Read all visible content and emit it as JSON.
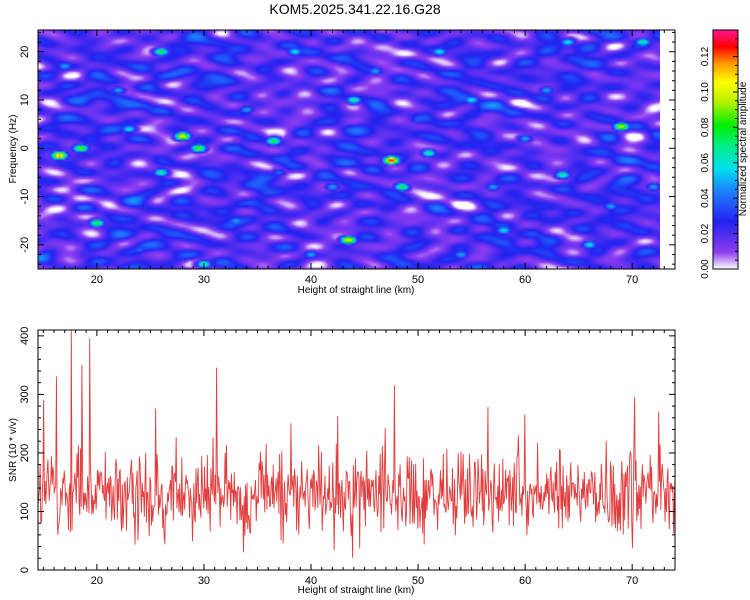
{
  "title": "KOM5.2025.341.22.16.G28",
  "chart_data": [
    {
      "type": "heatmap",
      "xlabel": "Height of straight line (km)",
      "ylabel": "Frequency (Hz)",
      "xlim": [
        14.5,
        74
      ],
      "ylim": [
        -25,
        24.5
      ],
      "data_xrange": [
        14.5,
        73
      ],
      "xticks": [
        20,
        30,
        40,
        50,
        60,
        70
      ],
      "yticks": [
        -20,
        -10,
        0,
        10,
        20
      ],
      "colorbar": {
        "label": "Normalized spectral amplitude",
        "range": [
          0,
          0.135
        ],
        "ticks": [
          "0.00",
          "0.02",
          "0.04",
          "0.06",
          "0.08",
          "0.10",
          "0.12"
        ],
        "tick_values": [
          0,
          0.02,
          0.04,
          0.06,
          0.08,
          0.1,
          0.12
        ]
      },
      "background_amplitude": 0.02,
      "peaks": [
        {
          "x": 47.5,
          "y": -2.5,
          "amplitude": 0.13
        },
        {
          "x": 16.5,
          "y": -1.5,
          "amplitude": 0.12
        },
        {
          "x": 28,
          "y": 2.5,
          "amplitude": 0.11
        },
        {
          "x": 43.5,
          "y": -19,
          "amplitude": 0.11
        },
        {
          "x": 69,
          "y": 4.5,
          "amplitude": 0.1
        },
        {
          "x": 18.5,
          "y": 0,
          "amplitude": 0.09
        },
        {
          "x": 29.5,
          "y": 0,
          "amplitude": 0.09
        },
        {
          "x": 36.5,
          "y": 1.5,
          "amplitude": 0.08
        },
        {
          "x": 26,
          "y": 20,
          "amplitude": 0.08
        },
        {
          "x": 48.5,
          "y": -8,
          "amplitude": 0.08
        },
        {
          "x": 20,
          "y": -15.5,
          "amplitude": 0.08
        },
        {
          "x": 44,
          "y": 10,
          "amplitude": 0.07
        },
        {
          "x": 51,
          "y": -1,
          "amplitude": 0.07
        },
        {
          "x": 63.5,
          "y": -5.5,
          "amplitude": 0.07
        },
        {
          "x": 71,
          "y": 22,
          "amplitude": 0.07
        },
        {
          "x": 30,
          "y": -24,
          "amplitude": 0.07
        },
        {
          "x": 26,
          "y": -5,
          "amplitude": 0.07
        },
        {
          "x": 23,
          "y": 4,
          "amplitude": 0.06
        },
        {
          "x": 55,
          "y": 10,
          "amplitude": 0.06
        },
        {
          "x": 64,
          "y": 22,
          "amplitude": 0.06
        },
        {
          "x": 66,
          "y": -20,
          "amplitude": 0.06
        },
        {
          "x": 58,
          "y": -17,
          "amplitude": 0.06
        },
        {
          "x": 38.5,
          "y": 20,
          "amplitude": 0.06
        },
        {
          "x": 52,
          "y": 20,
          "amplitude": 0.06
        },
        {
          "x": 34,
          "y": 8,
          "amplitude": 0.05
        },
        {
          "x": 60,
          "y": 2,
          "amplitude": 0.05
        },
        {
          "x": 42,
          "y": -8,
          "amplitude": 0.05
        },
        {
          "x": 54,
          "y": -22,
          "amplitude": 0.05
        },
        {
          "x": 22,
          "y": 12,
          "amplitude": 0.05
        },
        {
          "x": 68,
          "y": -12,
          "amplitude": 0.05
        },
        {
          "x": 33,
          "y": -15,
          "amplitude": 0.05
        },
        {
          "x": 46,
          "y": 16,
          "amplitude": 0.05
        },
        {
          "x": 62,
          "y": 12,
          "amplitude": 0.05
        },
        {
          "x": 17,
          "y": 17,
          "amplitude": 0.05
        },
        {
          "x": 57,
          "y": -8,
          "amplitude": 0.05
        },
        {
          "x": 72,
          "y": -8,
          "amplitude": 0.05
        },
        {
          "x": 40,
          "y": -22,
          "amplitude": 0.05
        },
        {
          "x": 50,
          "y": 6,
          "amplitude": 0.04
        },
        {
          "x": 37,
          "y": -5,
          "amplitude": 0.04
        },
        {
          "x": 24,
          "y": -21,
          "amplitude": 0.04
        }
      ]
    },
    {
      "type": "line",
      "color": "#e33b3b",
      "xlabel": "Height of straight line (km)",
      "ylabel": "SNR (10 * v/v)",
      "xlim": [
        14.5,
        74
      ],
      "ylim": [
        0,
        410
      ],
      "xticks": [
        20,
        30,
        40,
        50,
        60,
        70
      ],
      "yticks": [
        0,
        100,
        200,
        300,
        400
      ],
      "typical_range": [
        20,
        250
      ],
      "mean": 110,
      "sample_count": 900,
      "spikes": [
        {
          "x": 15.0,
          "y": 290
        },
        {
          "x": 16.2,
          "y": 330
        },
        {
          "x": 17.6,
          "y": 410
        },
        {
          "x": 18.6,
          "y": 350
        },
        {
          "x": 19.3,
          "y": 395
        },
        {
          "x": 31.2,
          "y": 345
        },
        {
          "x": 47.8,
          "y": 315
        },
        {
          "x": 70.2,
          "y": 295
        },
        {
          "x": 56.5,
          "y": 278
        },
        {
          "x": 72.5,
          "y": 270
        },
        {
          "x": 60.0,
          "y": 265
        },
        {
          "x": 25.5,
          "y": 275
        }
      ]
    }
  ]
}
